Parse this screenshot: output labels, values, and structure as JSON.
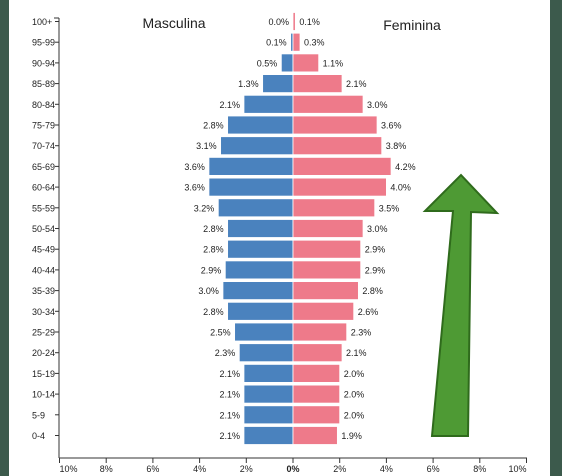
{
  "chart_data": {
    "type": "bar",
    "orientation": "horizontal",
    "layout": "population-pyramid",
    "categories": [
      "100+",
      "95-99",
      "90-94",
      "85-89",
      "80-84",
      "75-79",
      "70-74",
      "65-69",
      "60-64",
      "55-59",
      "50-54",
      "45-49",
      "40-44",
      "35-39",
      "30-34",
      "25-29",
      "20-24",
      "15-19",
      "10-14",
      "5-9",
      "0-4"
    ],
    "series": [
      {
        "name": "Masculina",
        "side": "left",
        "color": "#4a82be",
        "values": [
          0.0,
          0.1,
          0.5,
          1.3,
          2.1,
          2.8,
          3.1,
          3.6,
          3.6,
          3.2,
          2.8,
          2.8,
          2.9,
          3.0,
          2.8,
          2.5,
          2.3,
          2.1,
          2.1,
          2.1,
          2.1
        ],
        "value_labels": [
          "0.0%",
          "0.1%",
          "0.5%",
          "1.3%",
          "2.1%",
          "2.8%",
          "3.1%",
          "3.6%",
          "3.6%",
          "3.2%",
          "2.8%",
          "2.8%",
          "2.9%",
          "3.0%",
          "2.8%",
          "2.5%",
          "2.3%",
          "2.1%",
          "2.1%",
          "2.1%",
          "2.1%"
        ]
      },
      {
        "name": "Feminina",
        "side": "right",
        "color": "#ee7a8a",
        "values": [
          0.1,
          0.3,
          1.1,
          2.1,
          3.0,
          3.6,
          3.8,
          4.2,
          4.0,
          3.5,
          3.0,
          2.9,
          2.9,
          2.8,
          2.6,
          2.3,
          2.1,
          2.0,
          2.0,
          2.0,
          1.9
        ],
        "value_labels": [
          "0.1%",
          "0.3%",
          "1.1%",
          "2.1%",
          "3.0%",
          "3.6%",
          "3.8%",
          "4.2%",
          "4.0%",
          "3.5%",
          "3.0%",
          "2.9%",
          "2.9%",
          "2.8%",
          "2.6%",
          "2.3%",
          "2.1%",
          "2.0%",
          "2.0%",
          "2.0%",
          "1.9%"
        ]
      }
    ],
    "x_ticks": [
      "10%",
      "8%",
      "6%",
      "4%",
      "2%",
      "0%",
      "2%",
      "4%",
      "6%",
      "8%",
      "10%"
    ],
    "xlim": [
      -10,
      10
    ],
    "grid": false
  },
  "annotation": {
    "type": "up-arrow",
    "fill": "#4e9a34",
    "stroke": "#2f6b1c"
  }
}
